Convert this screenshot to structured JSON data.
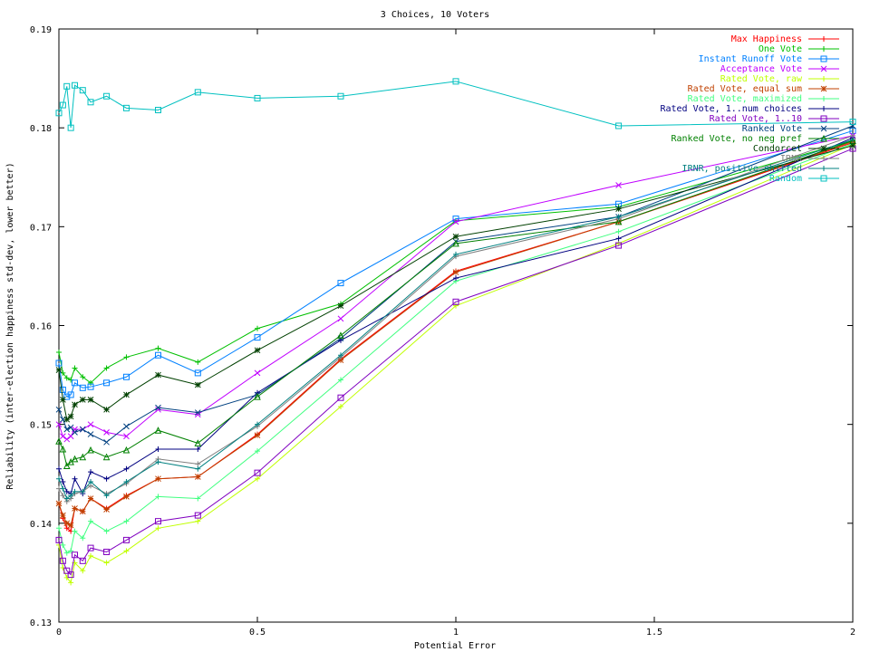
{
  "chart_data": {
    "type": "line",
    "title": "3 Choices, 10 Voters",
    "xlabel": "Potential Error",
    "ylabel": "Reliability (inter-election happiness std-dev, lower better)",
    "xlim": [
      0,
      2
    ],
    "ylim": [
      0.13,
      0.19
    ],
    "xticks": [
      0,
      0.5,
      1,
      1.5,
      2
    ],
    "xtick_labels": [
      "0",
      "0.5",
      "1",
      "1.5",
      "2"
    ],
    "yticks": [
      0.13,
      0.14,
      0.15,
      0.16,
      0.17,
      0.18,
      0.19
    ],
    "ytick_labels": [
      "0.13",
      "0.14",
      "0.15",
      "0.16",
      "0.17",
      "0.18",
      "0.19"
    ],
    "grid": false,
    "legend_position": "top-right",
    "x": [
      0,
      0.01,
      0.02,
      0.03,
      0.04,
      0.06,
      0.08,
      0.12,
      0.17,
      0.25,
      0.35,
      0.5,
      0.71,
      1.0,
      1.41,
      2.0
    ],
    "series": [
      {
        "name": "Max Happiness",
        "color": "#ff0000",
        "marker": "plus",
        "values": [
          0.142,
          0.1405,
          0.1395,
          0.1392,
          0.1415,
          0.1412,
          0.1425,
          0.1415,
          0.1428,
          0.1445,
          0.1447,
          0.149,
          0.1566,
          0.1655,
          0.1705,
          0.1785
        ]
      },
      {
        "name": "One Vote",
        "color": "#00c000",
        "marker": "plus",
        "values": [
          0.1573,
          0.1552,
          0.1547,
          0.1545,
          0.1557,
          0.1548,
          0.1542,
          0.1557,
          0.1568,
          0.1577,
          0.1563,
          0.1597,
          0.1622,
          0.1706,
          0.172,
          0.1787
        ]
      },
      {
        "name": "Instant Runoff Vote",
        "color": "#0080ff",
        "marker": "square",
        "values": [
          0.1562,
          0.1535,
          0.1528,
          0.153,
          0.1542,
          0.1537,
          0.1538,
          0.1542,
          0.1548,
          0.157,
          0.1552,
          0.1588,
          0.1643,
          0.1708,
          0.1723,
          0.1797
        ]
      },
      {
        "name": "Acceptance Vote",
        "color": "#c000ff",
        "marker": "x",
        "values": [
          0.15,
          0.1488,
          0.1485,
          0.1488,
          0.1495,
          0.1495,
          0.15,
          0.1492,
          0.1488,
          0.1515,
          0.151,
          0.1552,
          0.1607,
          0.1705,
          0.1742,
          0.1792
        ]
      },
      {
        "name": "Rated Vote, raw",
        "color": "#c0ff00",
        "marker": "plus",
        "values": [
          0.1378,
          0.1355,
          0.1345,
          0.134,
          0.136,
          0.1352,
          0.1367,
          0.136,
          0.1372,
          0.1395,
          0.1402,
          0.1445,
          0.1518,
          0.162,
          0.1683,
          0.1783
        ]
      },
      {
        "name": "Rated Vote, equal sum",
        "color": "#c04000",
        "marker": "asterisk",
        "values": [
          0.142,
          0.1408,
          0.14,
          0.1398,
          0.1415,
          0.1412,
          0.1425,
          0.1414,
          0.1427,
          0.1445,
          0.1447,
          0.1489,
          0.1565,
          0.1654,
          0.1705,
          0.1786
        ]
      },
      {
        "name": "Rated Vote, maximized",
        "color": "#40ff80",
        "marker": "plus",
        "values": [
          0.1395,
          0.1378,
          0.137,
          0.1372,
          0.1392,
          0.1385,
          0.1402,
          0.1392,
          0.1402,
          0.1427,
          0.1425,
          0.1473,
          0.1545,
          0.1645,
          0.1695,
          0.1784
        ]
      },
      {
        "name": "Rated Vote, 1..num choices",
        "color": "#000080",
        "marker": "plus",
        "values": [
          0.1455,
          0.1442,
          0.1432,
          0.143,
          0.1445,
          0.143,
          0.1452,
          0.1445,
          0.1455,
          0.1475,
          0.1475,
          0.1532,
          0.1585,
          0.1648,
          0.1688,
          0.179
        ]
      },
      {
        "name": "Rated Vote, 1..10",
        "color": "#8000c0",
        "marker": "square",
        "values": [
          0.1383,
          0.1362,
          0.1352,
          0.1348,
          0.1368,
          0.1362,
          0.1375,
          0.1371,
          0.1383,
          0.1402,
          0.1408,
          0.1451,
          0.1527,
          0.1624,
          0.1681,
          0.1779
        ]
      },
      {
        "name": "Ranked Vote",
        "color": "#004080",
        "marker": "x",
        "values": [
          0.1515,
          0.1505,
          0.1495,
          0.1497,
          0.1492,
          0.1495,
          0.149,
          0.1482,
          0.1498,
          0.1517,
          0.1512,
          0.153,
          0.1587,
          0.1685,
          0.171,
          0.1802
        ]
      },
      {
        "name": "Ranked Vote, no neg pref",
        "color": "#008000",
        "marker": "triangle",
        "values": [
          0.1483,
          0.1475,
          0.1458,
          0.1462,
          0.1465,
          0.1467,
          0.1474,
          0.1467,
          0.1474,
          0.1494,
          0.1481,
          0.1528,
          0.159,
          0.1683,
          0.1705,
          0.1787
        ]
      },
      {
        "name": "Condorcet",
        "color": "#004000",
        "marker": "asterisk",
        "values": [
          0.1555,
          0.1525,
          0.1505,
          0.1508,
          0.152,
          0.1525,
          0.1525,
          0.1515,
          0.153,
          0.155,
          0.154,
          0.1575,
          0.162,
          0.169,
          0.1718,
          0.1782
        ]
      },
      {
        "name": "IRNR",
        "color": "#808080",
        "marker": "plus",
        "values": [
          0.1435,
          0.1428,
          0.1422,
          0.1425,
          0.143,
          0.1432,
          0.1438,
          0.143,
          0.144,
          0.1465,
          0.146,
          0.1498,
          0.1568,
          0.167,
          0.1708,
          0.1792
        ]
      },
      {
        "name": "IRNR, positive shifted",
        "color": "#008080",
        "marker": "plus",
        "values": [
          0.1445,
          0.1435,
          0.1425,
          0.1428,
          0.1432,
          0.1432,
          0.1442,
          0.1428,
          0.1442,
          0.1462,
          0.1455,
          0.15,
          0.157,
          0.1672,
          0.171,
          0.1788
        ]
      },
      {
        "name": "Random",
        "color": "#00c0c0",
        "marker": "square",
        "values": [
          0.1815,
          0.1823,
          0.1842,
          0.18,
          0.1843,
          0.1838,
          0.1826,
          0.1832,
          0.182,
          0.1818,
          0.1836,
          0.183,
          0.1832,
          0.1847,
          0.1802,
          0.1806
        ]
      }
    ]
  }
}
